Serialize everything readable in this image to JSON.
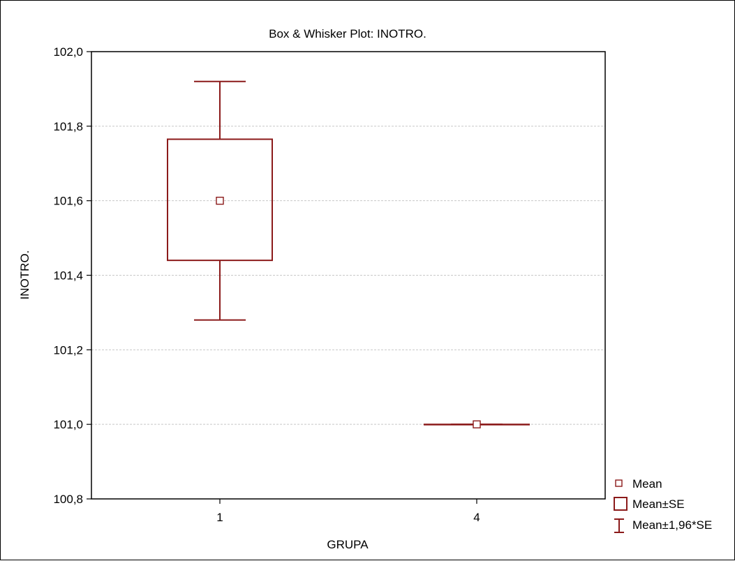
{
  "chart_data": {
    "type": "box",
    "title": "Box & Whisker Plot: INOTRO.",
    "xlabel": "GRUPA",
    "ylabel": "INOTRO.",
    "categories": [
      "1",
      "4"
    ],
    "ylim": [
      100.8,
      102.0
    ],
    "yticks": [
      100.8,
      101.0,
      101.2,
      101.4,
      101.6,
      101.8,
      102.0
    ],
    "ytick_labels": [
      "100,8",
      "101,0",
      "101,2",
      "101,4",
      "101,6",
      "101,8",
      "102,0"
    ],
    "grid": true,
    "boxes": [
      {
        "category": "1",
        "mean": 101.6,
        "se_low": 101.44,
        "se_high": 101.765,
        "ci_low": 101.28,
        "ci_high": 101.92
      },
      {
        "category": "4",
        "mean": 101.0,
        "se_low": 101.0,
        "se_high": 101.0,
        "ci_low": 101.0,
        "ci_high": 101.0
      }
    ],
    "legend": {
      "placement": "bottom-right",
      "items": [
        {
          "symbol": "mean-marker",
          "label": "Mean"
        },
        {
          "symbol": "box",
          "label": "Mean±SE"
        },
        {
          "symbol": "whisker",
          "label": "Mean±1,96*SE"
        }
      ]
    },
    "colors": {
      "series": "#8b1a1a",
      "grid": "#c8c8c8",
      "axis": "#000000"
    }
  }
}
